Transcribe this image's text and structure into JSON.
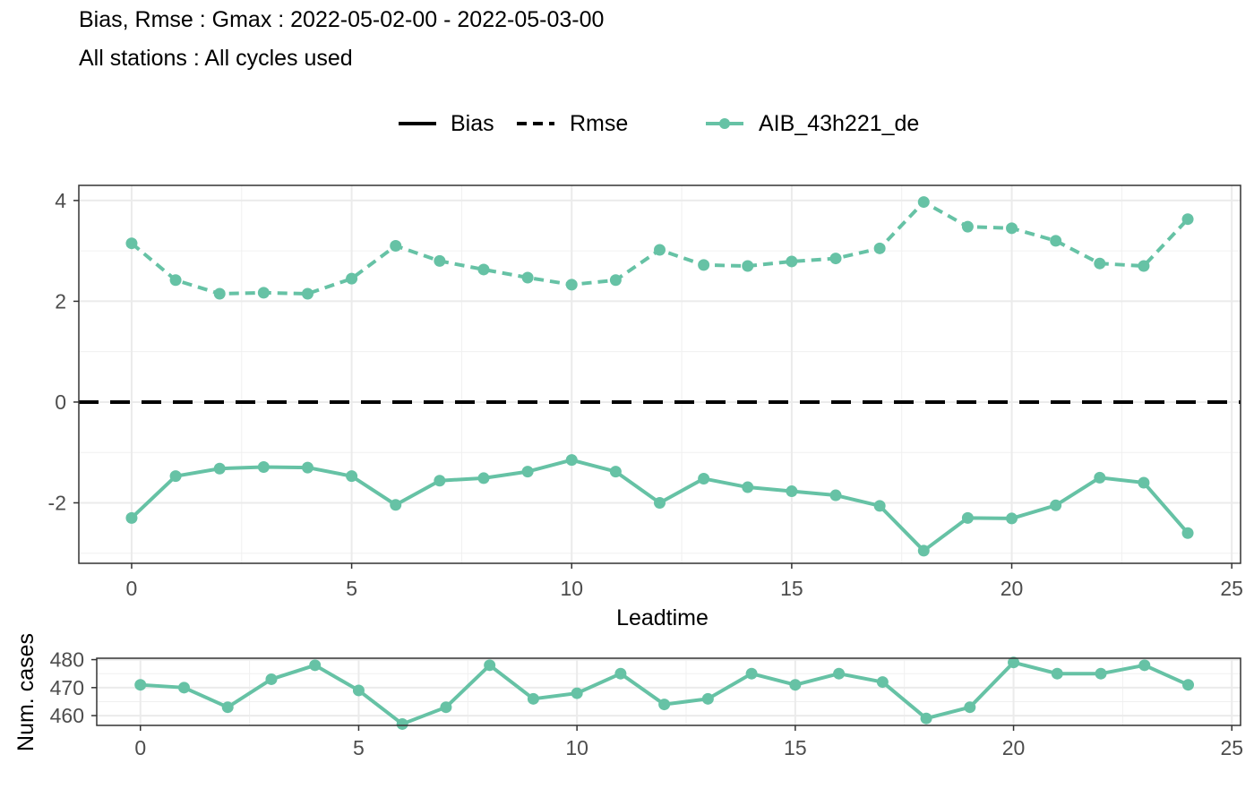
{
  "title": "Bias, Rmse : Gmax : 2022-05-02-00 - 2022-05-03-00",
  "subtitle": "All stations : All cycles used",
  "legend": {
    "bias_label": "Bias",
    "rmse_label": "Rmse",
    "model_label": "AIB_43h221_de"
  },
  "colors": {
    "series": "#66c2a5",
    "zero_line": "#000000"
  },
  "chart_data": [
    {
      "type": "line",
      "xlabel": "Leadtime",
      "ylabel": "",
      "xlim": [
        -1.2,
        25.2
      ],
      "ylim": [
        -3.2,
        4.3
      ],
      "x_ticks": [
        0,
        5,
        10,
        15,
        20,
        25
      ],
      "y_ticks": [
        -2,
        0,
        2,
        4
      ],
      "grid": true,
      "legend_position": "top",
      "x": [
        0,
        1,
        2,
        3,
        4,
        5,
        6,
        7,
        8,
        9,
        10,
        11,
        12,
        13,
        14,
        15,
        16,
        17,
        18,
        19,
        20,
        21,
        22,
        23,
        24
      ],
      "series": [
        {
          "name": "Rmse",
          "model": "AIB_43h221_de",
          "style": "dashed",
          "values": [
            3.15,
            2.42,
            2.15,
            2.17,
            2.15,
            2.45,
            3.1,
            2.8,
            2.63,
            2.47,
            2.33,
            2.42,
            3.02,
            2.72,
            2.7,
            2.79,
            2.85,
            3.05,
            3.97,
            3.48,
            3.45,
            3.2,
            2.75,
            2.7,
            3.63
          ]
        },
        {
          "name": "Bias",
          "model": "AIB_43h221_de",
          "style": "solid",
          "values": [
            -2.3,
            -1.47,
            -1.32,
            -1.29,
            -1.3,
            -1.47,
            -2.04,
            -1.56,
            -1.51,
            -1.38,
            -1.15,
            -1.38,
            -2.0,
            -1.52,
            -1.69,
            -1.77,
            -1.85,
            -2.06,
            -2.95,
            -2.3,
            -2.31,
            -2.05,
            -1.5,
            -1.6,
            -2.6
          ]
        }
      ],
      "reference_line": {
        "y": 0,
        "style": "dashed"
      }
    },
    {
      "type": "line",
      "xlabel": "",
      "ylabel": "Num. cases",
      "xlim": [
        -1.0,
        25.2
      ],
      "ylim": [
        456.5,
        480.5
      ],
      "x_ticks": [
        0,
        5,
        10,
        15,
        20,
        25
      ],
      "y_ticks": [
        460,
        470,
        480
      ],
      "grid": true,
      "x": [
        0,
        1,
        2,
        3,
        4,
        5,
        6,
        7,
        8,
        9,
        10,
        11,
        12,
        13,
        14,
        15,
        16,
        17,
        18,
        19,
        20,
        21,
        22,
        23,
        24
      ],
      "series": [
        {
          "name": "AIB_43h221_de",
          "values": [
            471,
            470,
            463,
            473,
            478,
            469,
            457,
            463,
            478,
            466,
            468,
            475,
            464,
            466,
            475,
            471,
            475,
            472,
            459,
            463,
            479,
            475,
            475,
            478,
            471
          ]
        }
      ]
    }
  ]
}
